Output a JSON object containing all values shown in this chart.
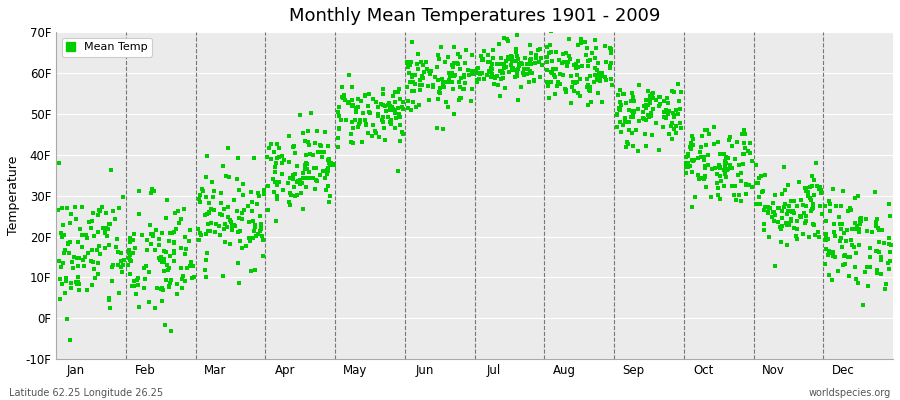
{
  "title": "Monthly Mean Temperatures 1901 - 2009",
  "ylabel": "Temperature",
  "bottom_left": "Latitude 62.25 Longitude 26.25",
  "bottom_right": "worldspecies.org",
  "legend_label": "Mean Temp",
  "marker_color": "#00CC00",
  "background_color": "#FFFFFF",
  "plot_bg_color": "#EBEBEB",
  "ylim": [
    -10,
    70
  ],
  "yticks": [
    -10,
    0,
    10,
    20,
    30,
    40,
    50,
    60,
    70
  ],
  "ytick_labels": [
    "-10F",
    "0F",
    "10F",
    "20F",
    "30F",
    "40F",
    "50F",
    "60F",
    "70F"
  ],
  "months": [
    "Jan",
    "Feb",
    "Mar",
    "Apr",
    "May",
    "Jun",
    "Jul",
    "Aug",
    "Sep",
    "Oct",
    "Nov",
    "Dec"
  ],
  "monthly_means_F": [
    16,
    14,
    25,
    37,
    50,
    58,
    62,
    60,
    50,
    38,
    27,
    19
  ],
  "monthly_stds_F": [
    8,
    8,
    6,
    5,
    4,
    4,
    3,
    4,
    4,
    5,
    5,
    6
  ],
  "n_years": 109,
  "seed": 42,
  "dashed_color": "#777777",
  "spine_color": "#AAAAAA"
}
